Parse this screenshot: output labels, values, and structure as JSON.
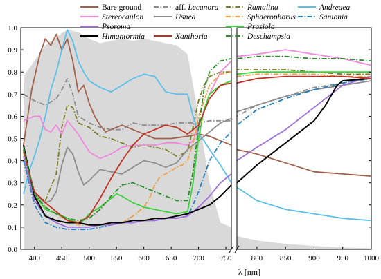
{
  "chart_data": {
    "type": "line",
    "xlabel": "λ [nm]",
    "ylabel": "",
    "xlim": [
      375,
      1000
    ],
    "ylim": [
      0,
      1.0
    ],
    "x_break": [
      760,
      765
    ],
    "grid": false,
    "legend_placement": "top",
    "x_ticks": [
      400,
      450,
      500,
      550,
      600,
      650,
      700,
      750,
      800,
      850,
      900,
      950,
      1000
    ],
    "y_ticks": [
      0.0,
      0.1,
      0.2,
      0.3,
      0.4,
      0.5,
      0.6,
      0.7,
      0.8,
      0.9,
      1.0
    ],
    "background_area": {
      "color": "#d9d9d9",
      "x": [
        380,
        400,
        420,
        440,
        460,
        480,
        500,
        520,
        540,
        560,
        580,
        600,
        620,
        640,
        660,
        680,
        700,
        720,
        740,
        760,
        765,
        800,
        850,
        900,
        950,
        1000
      ],
      "y": [
        0.78,
        0.85,
        0.92,
        0.96,
        0.99,
        0.98,
        0.95,
        0.93,
        0.94,
        0.95,
        0.94,
        0.95,
        0.94,
        0.93,
        0.92,
        0.88,
        0.6,
        0.3,
        0.12,
        0.1,
        0.06,
        0.04,
        0.025,
        0.015,
        0.008,
        0.005
      ]
    },
    "series": [
      {
        "name": "Bare ground",
        "italic": false,
        "color": "#a0604a",
        "dash": "solid",
        "x": [
          380,
          395,
          410,
          420,
          430,
          440,
          450,
          460,
          470,
          480,
          490,
          500,
          510,
          520,
          530,
          540,
          560,
          580,
          600,
          620,
          650,
          680,
          700,
          720,
          740,
          760,
          765,
          800,
          850,
          900,
          950,
          1000
        ],
        "y": [
          0.47,
          0.72,
          0.88,
          0.95,
          0.92,
          0.97,
          0.9,
          0.95,
          0.85,
          0.71,
          0.74,
          0.66,
          0.6,
          0.56,
          0.53,
          0.54,
          0.56,
          0.54,
          0.52,
          0.5,
          0.5,
          0.51,
          0.52,
          0.51,
          0.49,
          0.47,
          0.45,
          0.43,
          0.39,
          0.35,
          0.34,
          0.33
        ]
      },
      {
        "name": "aff. Lecanora",
        "italic": false,
        "italic_part": "Lecanora",
        "color": "#8c8c8c",
        "dash": "dashdot",
        "x": [
          380,
          400,
          420,
          440,
          450,
          460,
          470,
          480,
          500,
          520,
          540,
          560,
          580,
          600,
          620,
          640,
          660,
          680,
          700,
          720,
          740,
          760,
          765,
          800,
          850,
          900,
          950,
          1000
        ],
        "y": [
          0.7,
          0.67,
          0.65,
          0.68,
          0.72,
          0.77,
          0.7,
          0.6,
          0.57,
          0.55,
          0.54,
          0.54,
          0.57,
          0.56,
          0.56,
          0.56,
          0.57,
          0.57,
          0.57,
          0.58,
          0.58,
          0.58,
          0.6,
          0.65,
          0.69,
          0.73,
          0.75,
          0.78
        ]
      },
      {
        "name": "Ramalina",
        "italic": true,
        "color": "#7a7a20",
        "dash": "dashdot",
        "x": [
          380,
          390,
          400,
          420,
          440,
          450,
          460,
          470,
          480,
          500,
          520,
          540,
          560,
          580,
          600,
          620,
          640,
          660,
          680,
          690,
          700,
          710,
          720,
          740,
          760,
          765,
          800,
          850,
          900,
          950,
          1000
        ],
        "y": [
          0.44,
          0.33,
          0.25,
          0.22,
          0.34,
          0.55,
          0.65,
          0.64,
          0.57,
          0.55,
          0.51,
          0.5,
          0.48,
          0.46,
          0.47,
          0.46,
          0.45,
          0.42,
          0.44,
          0.55,
          0.67,
          0.74,
          0.78,
          0.8,
          0.8,
          0.81,
          0.81,
          0.81,
          0.8,
          0.79,
          0.79
        ]
      },
      {
        "name": "Andreaea",
        "italic": true,
        "color": "#5bbfea",
        "dash": "solid",
        "x": [
          380,
          390,
          400,
          410,
          420,
          430,
          440,
          450,
          460,
          470,
          480,
          490,
          500,
          520,
          540,
          560,
          580,
          600,
          620,
          640,
          660,
          680,
          690,
          700,
          710,
          720,
          740,
          760,
          765,
          800,
          850,
          900,
          950,
          1000
        ],
        "y": [
          0.25,
          0.35,
          0.42,
          0.5,
          0.6,
          0.72,
          0.8,
          0.9,
          0.99,
          0.94,
          0.85,
          0.8,
          0.76,
          0.73,
          0.71,
          0.74,
          0.77,
          0.79,
          0.78,
          0.71,
          0.7,
          0.7,
          0.6,
          0.52,
          0.49,
          0.45,
          0.38,
          0.3,
          0.28,
          0.22,
          0.18,
          0.16,
          0.14,
          0.13
        ]
      },
      {
        "name": "Stereocaulon",
        "italic": true,
        "color": "#f088e0",
        "dash": "solid",
        "x": [
          380,
          390,
          400,
          410,
          420,
          430,
          440,
          450,
          460,
          470,
          480,
          500,
          520,
          540,
          560,
          580,
          600,
          620,
          640,
          660,
          680,
          690,
          700,
          710,
          720,
          740,
          760,
          765,
          800,
          850,
          900,
          950,
          1000
        ],
        "y": [
          0.58,
          0.59,
          0.6,
          0.6,
          0.54,
          0.53,
          0.56,
          0.52,
          0.58,
          0.55,
          0.52,
          0.44,
          0.41,
          0.43,
          0.46,
          0.47,
          0.47,
          0.47,
          0.48,
          0.48,
          0.47,
          0.49,
          0.55,
          0.62,
          0.7,
          0.8,
          0.85,
          0.87,
          0.88,
          0.9,
          0.88,
          0.86,
          0.83
        ]
      },
      {
        "name": "Usnea",
        "italic": true,
        "color": "#8c8c8c",
        "dash": "solid",
        "x": [
          380,
          390,
          400,
          410,
          420,
          430,
          440,
          450,
          460,
          470,
          480,
          490,
          500,
          520,
          540,
          560,
          580,
          600,
          620,
          640,
          660,
          680,
          700,
          720,
          740,
          760,
          765,
          800,
          850,
          900,
          950,
          1000
        ],
        "y": [
          0.4,
          0.33,
          0.26,
          0.23,
          0.21,
          0.22,
          0.26,
          0.38,
          0.46,
          0.43,
          0.35,
          0.29,
          0.31,
          0.36,
          0.35,
          0.34,
          0.37,
          0.4,
          0.39,
          0.37,
          0.39,
          0.45,
          0.49,
          0.53,
          0.57,
          0.59,
          0.62,
          0.65,
          0.69,
          0.72,
          0.74,
          0.76
        ]
      },
      {
        "name": "Sphaerophorus",
        "italic": true,
        "color": "#f0a040",
        "dash": "dashdot",
        "x": [
          380,
          390,
          400,
          420,
          440,
          460,
          480,
          500,
          520,
          540,
          560,
          580,
          600,
          610,
          620,
          630,
          640,
          660,
          670,
          680,
          690,
          700,
          720,
          740,
          760,
          765,
          800,
          850,
          900,
          950,
          1000
        ],
        "y": [
          0.47,
          0.35,
          0.24,
          0.19,
          0.16,
          0.13,
          0.11,
          0.11,
          0.11,
          0.12,
          0.12,
          0.15,
          0.19,
          0.23,
          0.29,
          0.33,
          0.34,
          0.37,
          0.38,
          0.4,
          0.48,
          0.6,
          0.74,
          0.79,
          0.8,
          0.78,
          0.79,
          0.79,
          0.79,
          0.78,
          0.78
        ]
      },
      {
        "name": "Sanionia",
        "italic": true,
        "color": "#2080c0",
        "dash": "dashdot",
        "x": [
          380,
          390,
          400,
          420,
          440,
          460,
          480,
          500,
          520,
          540,
          560,
          580,
          600,
          620,
          640,
          660,
          680,
          690,
          700,
          710,
          720,
          740,
          760,
          765,
          800,
          850,
          900,
          950,
          1000
        ],
        "y": [
          0.4,
          0.3,
          0.2,
          0.12,
          0.1,
          0.09,
          0.09,
          0.09,
          0.1,
          0.11,
          0.12,
          0.12,
          0.13,
          0.13,
          0.14,
          0.14,
          0.15,
          0.2,
          0.26,
          0.33,
          0.4,
          0.48,
          0.53,
          0.56,
          0.63,
          0.68,
          0.72,
          0.75,
          0.77
        ]
      },
      {
        "name": "Psoroma",
        "italic": true,
        "color": "#a070d8",
        "dash": "solid",
        "x": [
          380,
          390,
          400,
          420,
          440,
          460,
          480,
          500,
          520,
          540,
          560,
          580,
          600,
          620,
          640,
          660,
          680,
          700,
          720,
          740,
          760,
          765,
          800,
          850,
          900,
          950,
          1000
        ],
        "y": [
          0.42,
          0.32,
          0.22,
          0.15,
          0.12,
          0.1,
          0.1,
          0.1,
          0.11,
          0.11,
          0.12,
          0.12,
          0.13,
          0.13,
          0.14,
          0.14,
          0.15,
          0.19,
          0.24,
          0.3,
          0.34,
          0.4,
          0.46,
          0.54,
          0.64,
          0.74,
          0.78
        ]
      },
      {
        "name": "Prasiola",
        "italic": true,
        "color": "#3ad23a",
        "dash": "solid",
        "x": [
          380,
          390,
          400,
          420,
          440,
          460,
          480,
          490,
          500,
          520,
          540,
          550,
          560,
          580,
          600,
          620,
          640,
          660,
          680,
          690,
          700,
          710,
          720,
          740,
          760,
          765,
          800,
          850,
          900,
          950,
          1000
        ],
        "y": [
          0.45,
          0.35,
          0.25,
          0.18,
          0.16,
          0.14,
          0.12,
          0.13,
          0.16,
          0.19,
          0.23,
          0.25,
          0.24,
          0.21,
          0.19,
          0.18,
          0.17,
          0.16,
          0.17,
          0.3,
          0.5,
          0.63,
          0.7,
          0.74,
          0.76,
          0.79,
          0.8,
          0.8,
          0.8,
          0.8,
          0.8
        ]
      },
      {
        "name": "Himantormia",
        "italic": true,
        "color": "#000000",
        "dash": "solid",
        "x": [
          380,
          400,
          420,
          440,
          460,
          480,
          500,
          520,
          540,
          560,
          580,
          600,
          620,
          640,
          660,
          680,
          700,
          720,
          740,
          760,
          765,
          800,
          850,
          900,
          920,
          940,
          950,
          1000
        ],
        "y": [
          0.47,
          0.24,
          0.15,
          0.13,
          0.12,
          0.12,
          0.11,
          0.11,
          0.12,
          0.12,
          0.13,
          0.13,
          0.14,
          0.14,
          0.15,
          0.16,
          0.18,
          0.2,
          0.24,
          0.29,
          0.3,
          0.38,
          0.48,
          0.58,
          0.65,
          0.74,
          0.76,
          0.77
        ]
      },
      {
        "name": "Xanthoria",
        "italic": true,
        "color": "#c03020",
        "dash": "solid",
        "x": [
          380,
          390,
          400,
          420,
          440,
          460,
          480,
          500,
          520,
          540,
          560,
          580,
          600,
          620,
          640,
          660,
          680,
          700,
          720,
          740,
          760,
          765,
          800,
          850,
          900,
          950,
          1000
        ],
        "y": [
          0.45,
          0.35,
          0.26,
          0.21,
          0.17,
          0.13,
          0.12,
          0.15,
          0.23,
          0.32,
          0.4,
          0.47,
          0.52,
          0.54,
          0.56,
          0.55,
          0.52,
          0.56,
          0.68,
          0.74,
          0.75,
          0.75,
          0.77,
          0.78,
          0.78,
          0.78,
          0.77
        ]
      },
      {
        "name": "Deschampsia",
        "italic": true,
        "color": "#2a8a2a",
        "dash": "dashdot",
        "x": [
          380,
          390,
          400,
          420,
          440,
          460,
          480,
          500,
          520,
          540,
          560,
          580,
          600,
          620,
          640,
          660,
          680,
          690,
          700,
          710,
          720,
          740,
          760,
          765,
          800,
          850,
          900,
          950,
          1000
        ],
        "y": [
          0.46,
          0.35,
          0.25,
          0.19,
          0.16,
          0.14,
          0.13,
          0.14,
          0.18,
          0.24,
          0.29,
          0.3,
          0.28,
          0.26,
          0.24,
          0.22,
          0.22,
          0.35,
          0.55,
          0.72,
          0.8,
          0.85,
          0.86,
          0.86,
          0.87,
          0.87,
          0.86,
          0.86,
          0.85
        ]
      }
    ]
  }
}
